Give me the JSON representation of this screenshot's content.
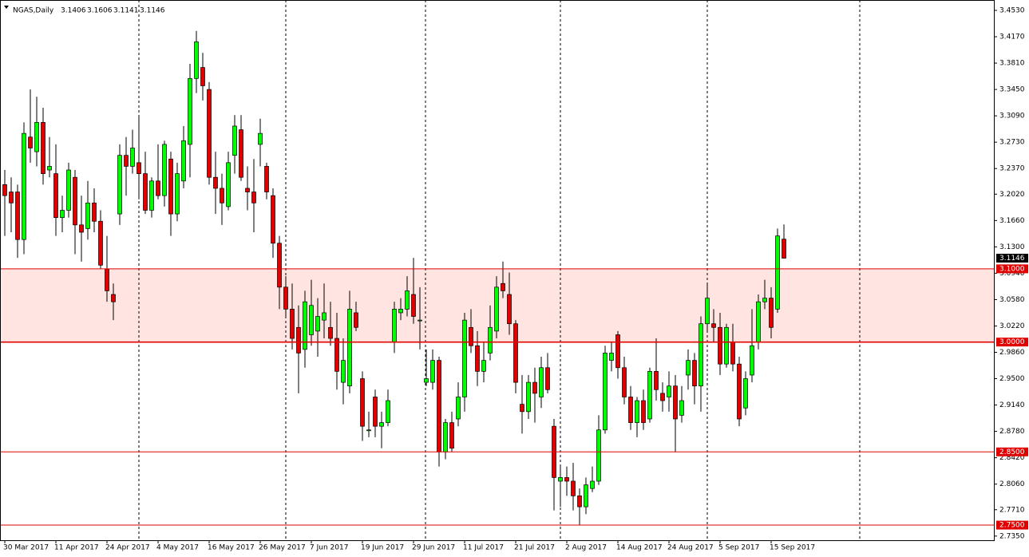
{
  "chart_data": {
    "type": "candlestick",
    "symbol": "NGAS,Daily",
    "ohlc_labels": [
      "3.1406",
      "3.1606",
      "3.1141",
      "3.1146"
    ],
    "categories": [
      "30 Mar 2017",
      null,
      null,
      null,
      null,
      null,
      null,
      null,
      "11 Apr 2017",
      null,
      null,
      null,
      null,
      null,
      null,
      null,
      "24 Apr 2017",
      null,
      null,
      null,
      null,
      null,
      null,
      null,
      "4 May 2017",
      null,
      null,
      null,
      null,
      null,
      null,
      null,
      "16 May 2017",
      null,
      null,
      null,
      null,
      null,
      null,
      null,
      "26 May 2017",
      null,
      null,
      null,
      null,
      null,
      null,
      null,
      "7 Jun 2017",
      null,
      null,
      null,
      null,
      null,
      null,
      null,
      "19 Jun 2017",
      null,
      null,
      null,
      null,
      null,
      null,
      null,
      "29 Jun 2017",
      null,
      null,
      null,
      null,
      null,
      null,
      null,
      "11 Jul 2017",
      null,
      null,
      null,
      null,
      null,
      null,
      null,
      "21 Jul 2017",
      null,
      null,
      null,
      null,
      null,
      null,
      null,
      "2 Aug 2017",
      null,
      null,
      null,
      null,
      null,
      null,
      null,
      "14 Aug 2017",
      null,
      null,
      null,
      null,
      null,
      null,
      null,
      "24 Aug 2017",
      null,
      null,
      null,
      null,
      null,
      null,
      null,
      "5 Sep 2017",
      null,
      null,
      null,
      null,
      null,
      null,
      null,
      "15 Sep 2017",
      null,
      null
    ],
    "open": [
      3.215,
      3.205,
      3.205,
      3.14,
      3.28,
      3.26,
      3.3,
      3.235,
      3.23,
      3.17,
      3.18,
      3.225,
      3.16,
      3.155,
      3.19,
      3.165,
      3.1,
      3.065,
      3.175,
      3.255,
      3.24,
      3.245,
      3.23,
      3.18,
      3.22,
      3.2,
      3.25,
      3.175,
      3.22,
      3.27,
      3.36,
      3.375,
      3.345,
      3.225,
      3.21,
      3.185,
      3.255,
      3.29,
      3.21,
      3.205,
      3.27,
      3.24,
      3.2,
      3.135,
      3.075,
      3.045,
      3.02,
      2.99,
      3.01,
      3.015,
      3.03,
      3.02,
      3.005,
      2.945,
      2.94,
      3.04,
      2.95,
      2.88,
      2.925,
      2.885,
      2.89,
      3.0,
      3.04,
      3.045,
      3.065,
      3.03,
      2.945,
      2.945,
      2.975,
      2.85,
      2.89,
      2.895,
      2.925,
      3.02,
      2.995,
      2.96,
      2.985,
      3.015,
      3.08,
      3.065,
      3.025,
      2.915,
      2.905,
      2.945,
      2.925,
      2.965,
      2.885,
      2.81,
      2.815,
      2.81,
      2.79,
      2.775,
      2.8,
      2.81,
      2.88,
      2.975,
      3.01,
      2.965,
      2.925,
      2.89,
      2.92,
      2.895,
      2.96,
      2.93,
      2.925,
      2.94,
      2.9,
      2.955,
      2.975,
      2.94,
      3.025,
      3.025,
      3.02,
      2.97,
      3.0,
      2.97,
      2.91,
      2.955,
      3.0,
      3.055,
      3.06,
      3.045,
      3.1406
    ],
    "high": [
      3.235,
      3.225,
      3.215,
      3.3,
      3.345,
      3.335,
      3.32,
      3.28,
      3.27,
      3.2,
      3.245,
      3.235,
      3.2,
      3.22,
      3.21,
      3.18,
      3.145,
      3.08,
      3.27,
      3.28,
      3.29,
      3.31,
      3.26,
      3.225,
      3.27,
      3.275,
      3.26,
      3.245,
      3.295,
      3.38,
      3.425,
      3.395,
      3.355,
      3.26,
      3.23,
      3.26,
      3.31,
      3.31,
      3.24,
      3.25,
      3.305,
      3.245,
      3.21,
      3.145,
      3.09,
      3.08,
      3.05,
      3.07,
      3.085,
      3.06,
      3.08,
      3.055,
      3.04,
      3.005,
      3.07,
      3.055,
      2.96,
      2.905,
      2.935,
      2.905,
      2.935,
      3.055,
      3.06,
      3.09,
      3.115,
      3.075,
      2.99,
      2.99,
      2.98,
      2.895,
      2.905,
      2.945,
      3.04,
      3.045,
      3.015,
      3.0,
      3.05,
      3.09,
      3.11,
      3.095,
      3.03,
      2.955,
      2.955,
      2.965,
      2.98,
      2.985,
      2.895,
      2.83,
      2.83,
      2.835,
      2.8,
      2.815,
      2.83,
      2.9,
      2.995,
      3.0,
      3.015,
      2.98,
      2.94,
      2.925,
      2.935,
      2.965,
      3.005,
      2.945,
      2.96,
      2.955,
      2.94,
      2.99,
      2.985,
      3.035,
      3.08,
      3.045,
      3.04,
      3.025,
      3.025,
      2.98,
      2.96,
      3.045,
      3.065,
      3.085,
      3.075,
      3.155,
      3.1606
    ],
    "low": [
      3.145,
      3.15,
      3.115,
      3.12,
      3.245,
      3.24,
      3.215,
      3.225,
      3.145,
      3.15,
      3.17,
      3.12,
      3.11,
      3.14,
      3.15,
      3.1,
      3.055,
      3.03,
      3.16,
      3.2,
      3.23,
      3.195,
      3.175,
      3.17,
      3.195,
      3.185,
      3.145,
      3.165,
      3.21,
      3.225,
      3.34,
      3.33,
      3.215,
      3.175,
      3.16,
      3.18,
      3.23,
      3.22,
      3.18,
      3.15,
      3.24,
      3.195,
      3.115,
      3.045,
      3.035,
      2.99,
      2.93,
      2.965,
      2.995,
      2.98,
      3.005,
      2.995,
      2.935,
      2.915,
      2.93,
      3.015,
      2.865,
      2.87,
      2.87,
      2.855,
      2.885,
      2.985,
      3.03,
      3.035,
      3.025,
      2.99,
      2.94,
      2.935,
      2.83,
      2.84,
      2.85,
      2.885,
      2.905,
      2.985,
      2.94,
      2.945,
      2.975,
      3.005,
      3.06,
      3.01,
      2.93,
      2.875,
      2.895,
      2.89,
      2.91,
      2.93,
      2.77,
      2.775,
      2.79,
      2.77,
      2.75,
      2.765,
      2.795,
      2.805,
      2.875,
      2.96,
      2.95,
      2.915,
      2.88,
      2.87,
      2.88,
      2.89,
      2.92,
      2.905,
      2.905,
      2.85,
      2.89,
      2.935,
      2.915,
      2.905,
      3.015,
      3.0,
      2.955,
      2.965,
      2.96,
      2.885,
      2.9,
      2.945,
      2.99,
      3.045,
      3.005,
      3.04,
      3.1141
    ],
    "close": [
      3.2,
      3.19,
      3.14,
      3.285,
      3.265,
      3.3,
      3.23,
      3.24,
      3.17,
      3.18,
      3.235,
      3.16,
      3.15,
      3.19,
      3.165,
      3.105,
      3.07,
      3.055,
      3.255,
      3.24,
      3.265,
      3.23,
      3.18,
      3.22,
      3.2,
      3.27,
      3.175,
      3.23,
      3.275,
      3.36,
      3.41,
      3.35,
      3.225,
      3.21,
      3.19,
      3.245,
      3.295,
      3.225,
      3.205,
      3.19,
      3.285,
      3.205,
      3.135,
      3.075,
      3.045,
      3.005,
      2.985,
      3.055,
      3.05,
      3.035,
      3.04,
      3.005,
      2.96,
      2.975,
      3.045,
      3.02,
      2.885,
      2.88,
      2.885,
      2.89,
      2.92,
      3.045,
      3.045,
      3.07,
      3.035,
      3.03,
      2.95,
      2.975,
      2.85,
      2.89,
      2.855,
      2.925,
      3.03,
      2.995,
      2.96,
      2.975,
      3.02,
      3.075,
      3.07,
      3.025,
      2.945,
      2.905,
      2.945,
      2.93,
      2.965,
      2.935,
      2.815,
      2.815,
      2.81,
      2.79,
      2.775,
      2.805,
      2.81,
      2.88,
      2.985,
      2.985,
      2.965,
      2.925,
      2.89,
      2.92,
      2.89,
      2.96,
      2.935,
      2.92,
      2.94,
      2.895,
      2.92,
      2.975,
      2.94,
      3.025,
      3.06,
      3.02,
      2.97,
      3.02,
      2.97,
      2.895,
      2.95,
      2.995,
      3.055,
      3.06,
      3.02,
      3.145,
      3.1146
    ],
    "up_color": "#00ff00",
    "down_color": "#e00000",
    "ylim": [
      2.735,
      3.453
    ],
    "yticks": [
      {
        "value": 3.453,
        "label": "3.4530"
      },
      {
        "value": 3.417,
        "label": "3.4170"
      },
      {
        "value": 3.381,
        "label": "3.3810"
      },
      {
        "value": 3.345,
        "label": "3.3450"
      },
      {
        "value": 3.309,
        "label": "3.3090"
      },
      {
        "value": 3.273,
        "label": "3.2730"
      },
      {
        "value": 3.237,
        "label": "3.2370"
      },
      {
        "value": 3.202,
        "label": "3.2020"
      },
      {
        "value": 3.166,
        "label": "3.1660"
      },
      {
        "value": 3.13,
        "label": "3.1300"
      },
      {
        "value": 3.094,
        "label": "3.0940"
      },
      {
        "value": 3.058,
        "label": "3.0580"
      },
      {
        "value": 3.022,
        "label": "3.0220"
      },
      {
        "value": 2.986,
        "label": "2.9860"
      },
      {
        "value": 2.95,
        "label": "2.9500"
      },
      {
        "value": 2.914,
        "label": "2.9140"
      },
      {
        "value": 2.878,
        "label": "2.8780"
      },
      {
        "value": 2.842,
        "label": "2.8420"
      },
      {
        "value": 2.806,
        "label": "2.8060"
      },
      {
        "value": 2.771,
        "label": "2.7710"
      },
      {
        "value": 2.735,
        "label": "2.7350"
      }
    ],
    "levels": [
      {
        "value": 3.1,
        "label": "3.1000"
      },
      {
        "value": 3.0,
        "label": "3.0000"
      },
      {
        "value": 2.85,
        "label": "2.8500"
      },
      {
        "value": 2.75,
        "label": "2.7500"
      }
    ],
    "level_color": "#e00000",
    "zone_color": "#ffe4e1",
    "last_price": {
      "value": 3.1146,
      "label": "3.1146"
    }
  }
}
